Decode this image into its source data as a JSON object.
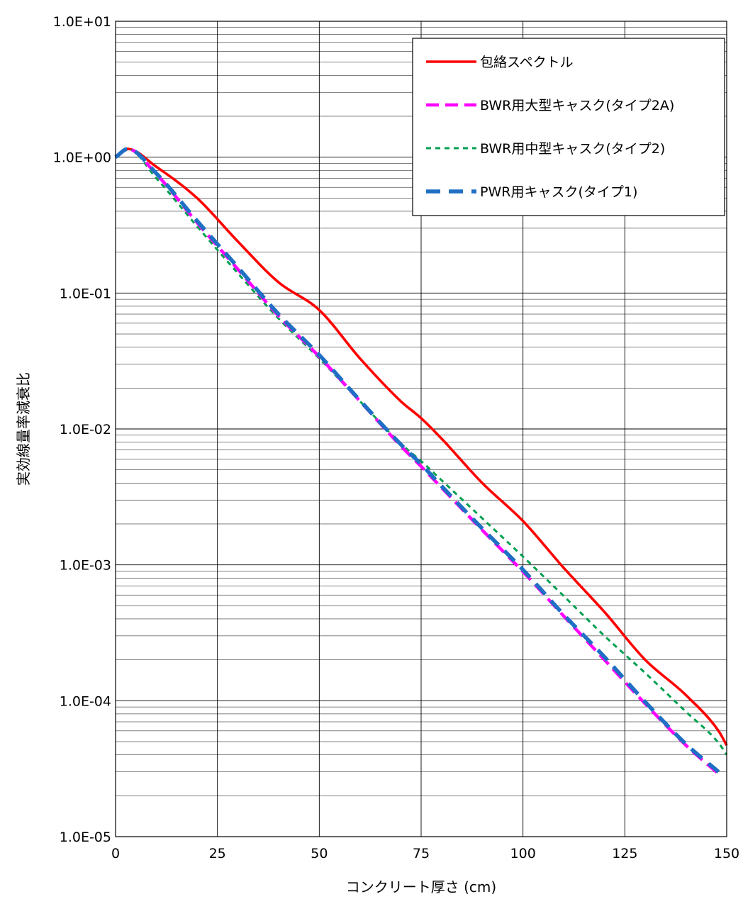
{
  "chart_data": {
    "type": "line",
    "title": "",
    "xlabel": "コンクリート厚さ (cm)",
    "ylabel": "実効線量率減衰比",
    "xlim": [
      0,
      150
    ],
    "ylim": [
      1e-05,
      10
    ],
    "yscale": "log",
    "grid": true,
    "legend_position": "top-right",
    "x_ticks": [
      0,
      25,
      50,
      75,
      100,
      125,
      150
    ],
    "x_tick_labels": [
      "0",
      "25",
      "50",
      "75",
      "100",
      "125",
      "150"
    ],
    "y_ticks": [
      10,
      1,
      0.1,
      0.01,
      0.001,
      0.0001,
      1e-05
    ],
    "y_tick_labels": [
      "1.0E+01",
      "1.0E+00",
      "1.0E-01",
      "1.0E-02",
      "1.0E-03",
      "1.0E-04",
      "1.0E-05"
    ],
    "x": [
      0,
      3,
      10,
      20,
      30,
      40,
      50,
      60,
      70,
      75,
      80,
      90,
      100,
      110,
      120,
      130,
      140,
      148,
      150
    ],
    "series": [
      {
        "name": "包絡スペクトル",
        "color": "#ff0000",
        "dash": "solid",
        "values": [
          1.0,
          1.15,
          0.85,
          0.5,
          0.24,
          0.12,
          0.075,
          0.033,
          0.016,
          0.012,
          0.0085,
          0.004,
          0.0021,
          0.00095,
          0.00045,
          0.0002,
          0.00011,
          6e-05,
          4.7e-05
        ]
      },
      {
        "name": "BWR用大型キャスク(タイプ2A)",
        "color": "#ff00ff",
        "dash": "long",
        "values": [
          1.0,
          1.15,
          0.75,
          0.33,
          0.15,
          0.068,
          0.034,
          0.016,
          0.0075,
          0.0053,
          0.0037,
          0.0018,
          0.00089,
          0.00042,
          0.0002,
          9.5e-05,
          4.7e-05,
          2.9e-05,
          null
        ]
      },
      {
        "name": "BWR用中型キャスク(タイプ2)",
        "color": "#00a050",
        "dash": "short",
        "values": [
          1.0,
          1.15,
          0.7,
          0.31,
          0.14,
          0.065,
          0.033,
          0.016,
          0.0078,
          0.0058,
          0.0042,
          0.0022,
          0.00115,
          0.00059,
          0.0003,
          0.00016,
          8.3e-05,
          4.9e-05,
          4e-05
        ]
      },
      {
        "name": "PWR用キャスク(タイプ1)",
        "color": "#1f6fc4",
        "dash": "long-thick",
        "values": [
          1.0,
          1.15,
          0.76,
          0.34,
          0.155,
          0.07,
          0.035,
          0.0162,
          0.0077,
          0.0055,
          0.0038,
          0.00185,
          0.00092,
          0.00043,
          0.00021,
          9.8e-05,
          4.8e-05,
          3e-05,
          null
        ]
      }
    ]
  }
}
